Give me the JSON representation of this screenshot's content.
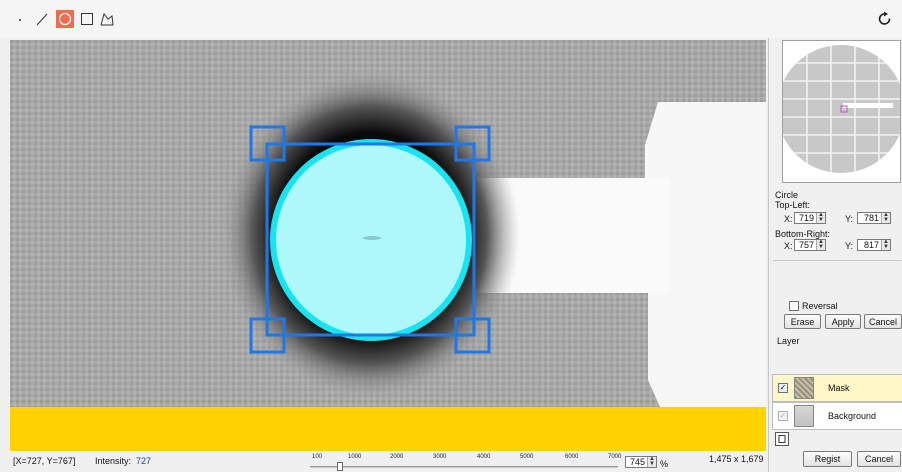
{
  "toolbar": {
    "tools": [
      "point-tool",
      "line-tool",
      "circle-tool",
      "rectangle-tool",
      "polygon-tool"
    ],
    "active_tool": "circle-tool",
    "accent_color": "#f26b4f"
  },
  "canvas": {
    "mask_color": "#aef8fb",
    "handle_color": "#1e78e6",
    "band_color": "#ffd200"
  },
  "shape_panel": {
    "heading": "Circle",
    "top_left_label": "Top-Left:",
    "bottom_right_label": "Bottom-Right:",
    "x_label": "X:",
    "y_label": "Y:",
    "top_left_x": "719",
    "top_left_y": "781",
    "bottom_right_x": "757",
    "bottom_right_y": "817"
  },
  "actions": {
    "reversal_label": "Reversal",
    "erase_label": "Erase",
    "apply_label": "Apply",
    "cancel_label": "Cancel"
  },
  "layers": {
    "heading": "Layer",
    "items": [
      {
        "name": "Mask",
        "checked": true,
        "selected": true
      },
      {
        "name": "Background",
        "checked": true,
        "selected": false
      }
    ]
  },
  "footer_buttons": {
    "regist_label": "Regist",
    "cancel_label": "Cancel"
  },
  "status": {
    "cursor": "[X=727, Y=767]",
    "intensity_label": "Intensity:",
    "intensity_value": "727",
    "scale_ticks": [
      "100",
      "1000",
      "2000",
      "3000",
      "4000",
      "5000",
      "6000",
      "7000"
    ],
    "zoom_value": "745",
    "zoom_unit": "%",
    "dimensions": "1,475 x 1,679"
  }
}
